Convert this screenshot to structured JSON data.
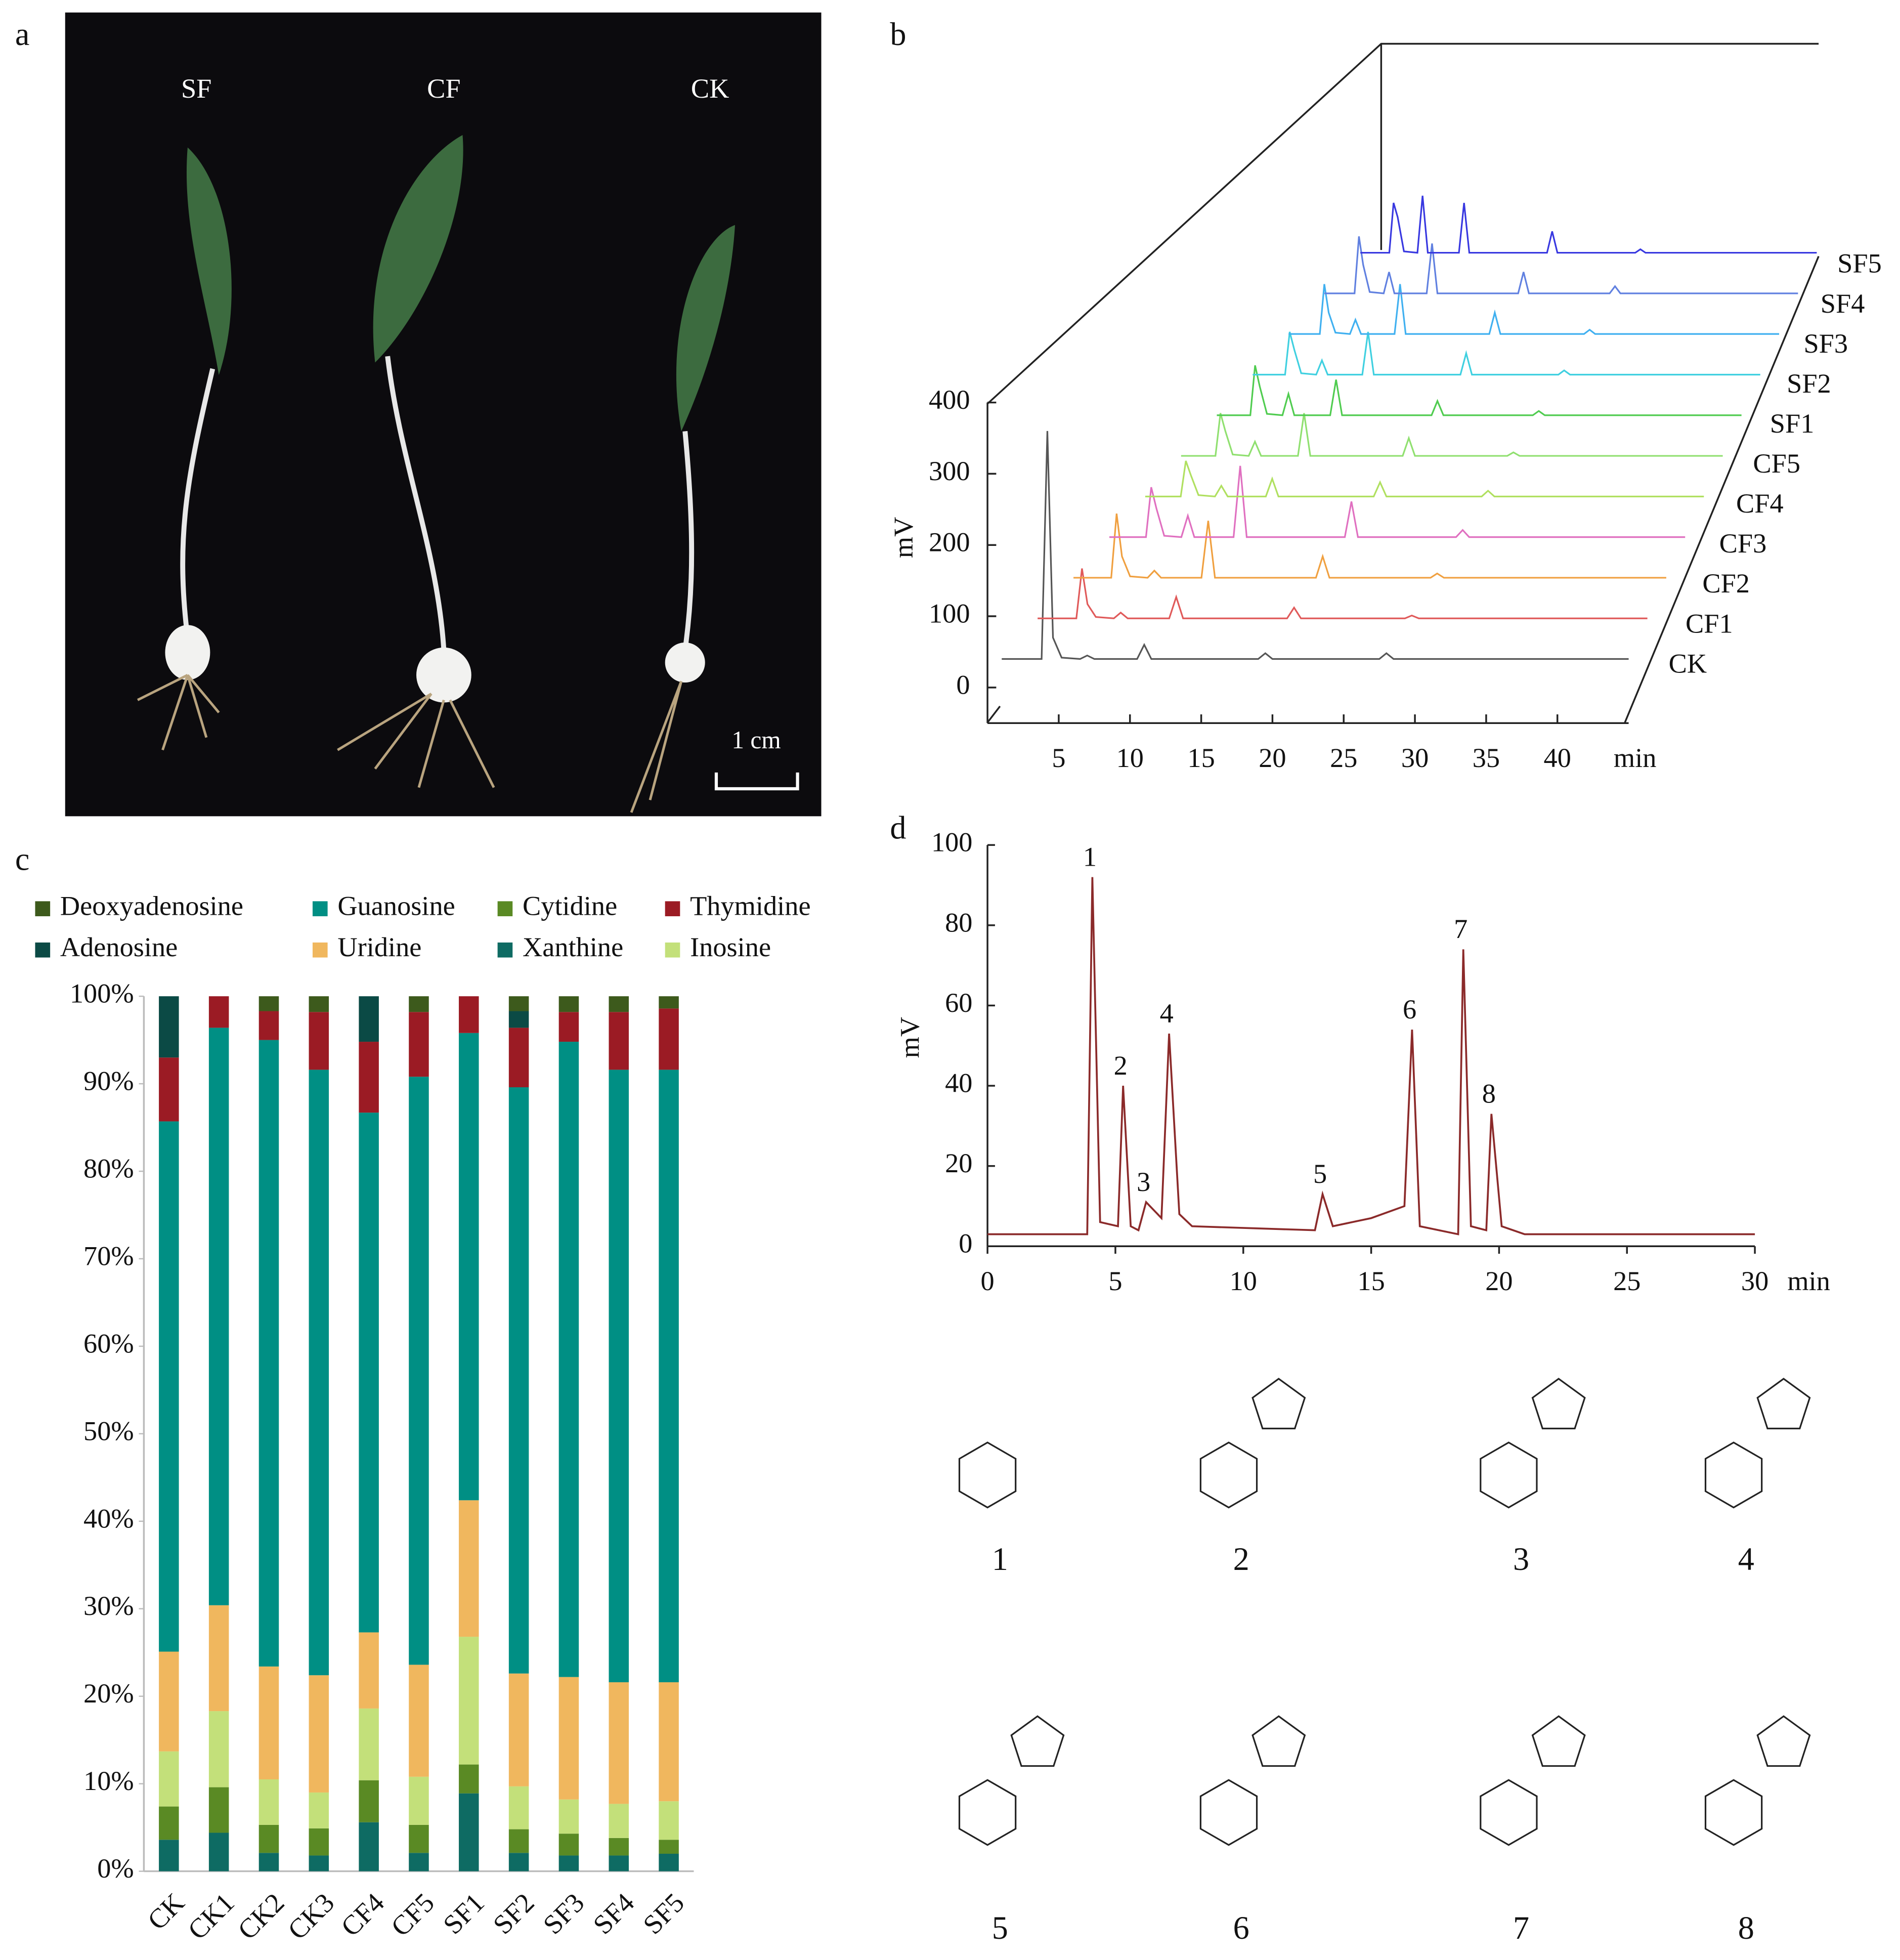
{
  "panels": {
    "a": "a",
    "b": "b",
    "c": "c",
    "d": "d"
  },
  "photo": {
    "labels": [
      "SF",
      "CF",
      "CK"
    ],
    "scale_bar": "1 cm"
  },
  "chart_data": [
    {
      "type": "waterfall",
      "x_label": "min",
      "y_label": "mV",
      "xlim": [
        0,
        45
      ],
      "ylim": [
        -50,
        400
      ],
      "xticks": [
        5,
        10,
        15,
        20,
        25,
        30,
        35,
        40
      ],
      "yticks": [
        0,
        100,
        200,
        300,
        400
      ],
      "x": [
        1,
        3.8,
        4.2,
        4.6,
        5.2,
        6.5,
        7,
        7.5,
        10.5,
        11,
        11.5,
        19,
        19.5,
        20,
        27.5,
        28,
        28.5,
        35
      ],
      "series": [
        {
          "name": "CK",
          "color": "#555555",
          "values": [
            40,
            40,
            360,
            70,
            42,
            40,
            45,
            40,
            40,
            60,
            40,
            40,
            48,
            40,
            40,
            48,
            40,
            40
          ]
        },
        {
          "name": "CF1",
          "color": "#e05a5a",
          "values": [
            40,
            40,
            110,
            60,
            42,
            40,
            48,
            40,
            40,
            70,
            40,
            40,
            55,
            40,
            40,
            44,
            40,
            40
          ]
        },
        {
          "name": "CF2",
          "color": "#f0a040",
          "values": [
            40,
            40,
            130,
            70,
            42,
            40,
            50,
            40,
            40,
            120,
            40,
            40,
            70,
            40,
            40,
            46,
            40,
            40
          ]
        },
        {
          "name": "CF3",
          "color": "#e070c0",
          "values": [
            40,
            40,
            110,
            80,
            42,
            40,
            70,
            40,
            40,
            140,
            40,
            40,
            90,
            40,
            40,
            50,
            40,
            40
          ]
        },
        {
          "name": "CF4",
          "color": "#b0e060",
          "values": [
            40,
            40,
            90,
            70,
            42,
            40,
            55,
            40,
            40,
            65,
            40,
            40,
            60,
            40,
            40,
            48,
            40,
            40
          ]
        },
        {
          "name": "CF5",
          "color": "#90e070",
          "values": [
            40,
            40,
            100,
            75,
            42,
            40,
            60,
            40,
            40,
            100,
            40,
            40,
            65,
            40,
            40,
            45,
            40,
            40
          ]
        },
        {
          "name": "SF1",
          "color": "#50cc50",
          "values": [
            40,
            40,
            110,
            80,
            42,
            40,
            70,
            40,
            40,
            90,
            40,
            40,
            60,
            40,
            40,
            46,
            40,
            40
          ]
        },
        {
          "name": "SF2",
          "color": "#40d0e0",
          "values": [
            40,
            40,
            100,
            75,
            42,
            40,
            60,
            40,
            40,
            100,
            40,
            40,
            70,
            40,
            40,
            46,
            40,
            40
          ]
        },
        {
          "name": "SF3",
          "color": "#40b0f0",
          "values": [
            40,
            40,
            110,
            70,
            42,
            40,
            60,
            40,
            40,
            110,
            40,
            40,
            70,
            40,
            40,
            46,
            40,
            40
          ]
        },
        {
          "name": "SF4",
          "color": "#6080e0",
          "values": [
            40,
            40,
            120,
            80,
            42,
            40,
            70,
            40,
            40,
            110,
            40,
            40,
            70,
            40,
            40,
            50,
            40,
            40
          ]
        },
        {
          "name": "SF5",
          "color": "#3838e0",
          "values": [
            40,
            40,
            110,
            90,
            42,
            40,
            120,
            40,
            40,
            110,
            40,
            40,
            70,
            40,
            40,
            45,
            40,
            40
          ]
        }
      ]
    },
    {
      "type": "stacked_bar",
      "categories": [
        "CK",
        "CK1",
        "CK2",
        "CK3",
        "CF4",
        "CF5",
        "SF1",
        "SF2",
        "SF3",
        "SF4",
        "SF5"
      ],
      "ylim": [
        0,
        100
      ],
      "yticks": [
        {
          "value": 0,
          "label": "0%"
        },
        {
          "value": 10,
          "label": "10%"
        },
        {
          "value": 20,
          "label": "20%"
        },
        {
          "value": 30,
          "label": "30%"
        },
        {
          "value": 40,
          "label": "40%"
        },
        {
          "value": 50,
          "label": "50%"
        },
        {
          "value": 60,
          "label": "60%"
        },
        {
          "value": 70,
          "label": "70%"
        },
        {
          "value": 80,
          "label": "80%"
        },
        {
          "value": 90,
          "label": "90%"
        },
        {
          "value": 100,
          "label": "100%"
        }
      ],
      "series": [
        {
          "name": "Xanthine",
          "color": "#0e6b63",
          "values": [
            3.6,
            4.4,
            2.1,
            1.8,
            5.6,
            2.1,
            8.9,
            2.1,
            1.8,
            1.8,
            2.0
          ]
        },
        {
          "name": "Cytidine",
          "color": "#5a8a24",
          "values": [
            3.8,
            5.2,
            3.2,
            3.1,
            4.8,
            3.2,
            3.3,
            2.7,
            2.5,
            2.0,
            1.6
          ]
        },
        {
          "name": "Inosine",
          "color": "#c3e07a",
          "values": [
            6.3,
            8.7,
            5.2,
            4.1,
            8.2,
            5.5,
            14.6,
            4.9,
            3.9,
            3.9,
            4.4
          ]
        },
        {
          "name": "Uridine",
          "color": "#f0b75e",
          "values": [
            11.4,
            12.1,
            12.9,
            13.4,
            8.7,
            12.8,
            15.6,
            12.9,
            14.0,
            13.9,
            13.6
          ]
        },
        {
          "name": "Guanosine",
          "color": "#008f84",
          "values": [
            60.6,
            66.0,
            71.6,
            69.2,
            59.4,
            67.2,
            53.4,
            67.0,
            72.6,
            70.0,
            70.0
          ]
        },
        {
          "name": "Thymidine",
          "color": "#9b1b24",
          "values": [
            7.3,
            3.6,
            3.3,
            6.6,
            8.1,
            7.4,
            4.2,
            6.8,
            3.4,
            6.6,
            7.0
          ]
        },
        {
          "name": "Adenosine",
          "color": "#0b4a45",
          "values": [
            7.0,
            0,
            0,
            0,
            5.2,
            0,
            0,
            1.9,
            0,
            0,
            0
          ]
        },
        {
          "name": "Deoxyadenosine",
          "color": "#3d5a1c",
          "values": [
            0,
            0,
            1.7,
            1.8,
            0,
            1.8,
            0,
            1.7,
            1.8,
            1.8,
            1.4
          ]
        }
      ]
    },
    {
      "type": "line",
      "x_label": "min",
      "y_label": "mV",
      "color": "#8b2a2a",
      "xlim": [
        0,
        30
      ],
      "ylim": [
        0,
        100
      ],
      "xticks": [
        0,
        5,
        10,
        15,
        20,
        25,
        30
      ],
      "yticks": [
        0,
        20,
        40,
        60,
        80,
        100
      ],
      "x": [
        0,
        3.9,
        4.1,
        4.4,
        5.1,
        5.3,
        5.6,
        5.9,
        6.2,
        6.8,
        7.1,
        7.5,
        8,
        12.8,
        13.1,
        13.5,
        15,
        16.3,
        16.6,
        16.9,
        18.4,
        18.6,
        18.9,
        19.5,
        19.7,
        20.1,
        21,
        30
      ],
      "values": [
        3,
        3,
        92,
        6,
        5,
        40,
        5,
        4,
        11,
        7,
        53,
        8,
        5,
        4,
        13,
        5,
        7,
        10,
        54,
        5,
        3,
        74,
        5,
        4,
        33,
        5,
        3,
        3
      ],
      "peaks": [
        {
          "label": "1",
          "x": 4.1,
          "y": 92
        },
        {
          "label": "2",
          "x": 5.3,
          "y": 40
        },
        {
          "label": "3",
          "x": 6.2,
          "y": 11
        },
        {
          "label": "4",
          "x": 7.1,
          "y": 53
        },
        {
          "label": "5",
          "x": 13.1,
          "y": 13
        },
        {
          "label": "6",
          "x": 16.6,
          "y": 54
        },
        {
          "label": "7",
          "x": 18.6,
          "y": 74
        },
        {
          "label": "8",
          "x": 19.7,
          "y": 33
        }
      ]
    }
  ],
  "structures": [
    "1",
    "2",
    "3",
    "4",
    "5",
    "6",
    "7",
    "8"
  ]
}
